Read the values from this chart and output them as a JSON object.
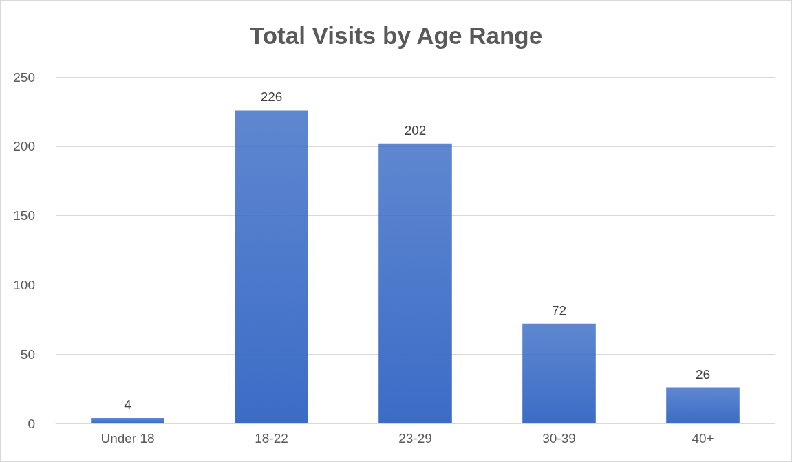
{
  "chart_data": {
    "type": "bar",
    "title": "Total Visits by Age Range",
    "categories": [
      "Under 18",
      "18-22",
      "23-29",
      "30-39",
      "40+"
    ],
    "values": [
      4,
      226,
      202,
      72,
      26
    ],
    "color": "#3b6cc6",
    "ylim": [
      0,
      250
    ],
    "yticks": [
      0,
      50,
      100,
      150,
      200,
      250
    ],
    "grid": "y",
    "data_labels": true
  }
}
